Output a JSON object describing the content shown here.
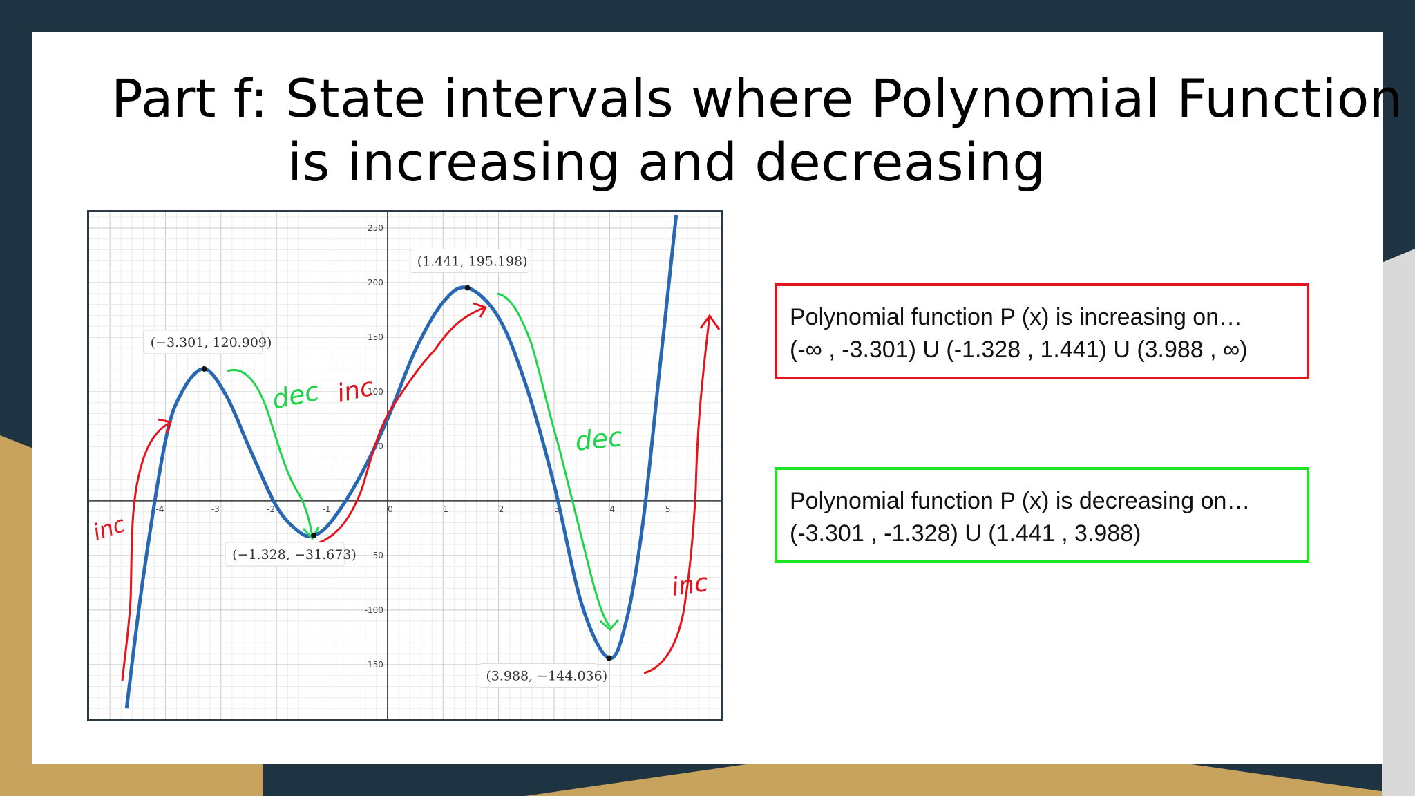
{
  "slide": {
    "title_line1": "Part f:  State intervals where Polynomial Function",
    "title_line2": "is increasing and decreasing"
  },
  "boxes": {
    "increasing": {
      "line1": "Polynomial function P (x) is increasing on…",
      "line2": "(-∞ , -3.301) U (-1.328 , 1.441) U (3.988 , ∞)",
      "border_color": "#e5131c"
    },
    "decreasing": {
      "line1": "Polynomial function P (x) is decreasing on…",
      "line2": "(-3.301 , -1.328) U (1.441 , 3.988)",
      "border_color": "#1ee325"
    }
  },
  "annotations": {
    "inc": "inc",
    "dec": "dec",
    "color_inc": "#e5131c",
    "color_dec": "#1fd34a"
  },
  "chart_data": {
    "type": "line",
    "xlim": [
      -5.3,
      5.9
    ],
    "ylim": [
      -195,
      262
    ],
    "grid": true,
    "x_ticks": [
      -5,
      -4,
      -3,
      -2,
      -1,
      0,
      1,
      2,
      3,
      4,
      5
    ],
    "x_tick_labels": [
      "",
      "-4",
      "-3",
      "-2",
      "-1",
      "0",
      "1",
      "2",
      "3",
      "4",
      "5"
    ],
    "y_ticks": [
      -150,
      -100,
      -50,
      50,
      100,
      150,
      200,
      250
    ],
    "y_tick_labels": [
      "-150",
      "-100",
      "-50",
      "50",
      "100",
      "150",
      "200",
      "250"
    ],
    "series": [
      {
        "color": "#2867b2",
        "x": [
          -4.7,
          -4.4,
          -4.0,
          -3.7,
          -3.301,
          -2.9,
          -2.5,
          -2.0,
          -1.6,
          -1.328,
          -1.0,
          -0.5,
          0.0,
          0.5,
          1.0,
          1.441,
          2.0,
          2.5,
          3.0,
          3.5,
          3.988,
          4.3,
          4.6,
          4.9,
          5.2
        ],
        "y": [
          -190,
          -70,
          55,
          100,
          120.909,
          96,
          50,
          -5,
          -28,
          -31.673,
          -18,
          22,
          75,
          138,
          182,
          195.198,
          168,
          105,
          15,
          -95,
          -144.036,
          -110,
          -20,
          120,
          262
        ]
      }
    ],
    "points": [
      {
        "x": -3.301,
        "y": 120.909,
        "label": "(−3.301, 120.909)"
      },
      {
        "x": -1.328,
        "y": -31.673,
        "label": "(−1.328, −31.673)"
      },
      {
        "x": 1.441,
        "y": 195.198,
        "label": "(1.441, 195.198)"
      },
      {
        "x": 3.988,
        "y": -144.036,
        "label": "(3.988, −144.036)"
      }
    ]
  }
}
